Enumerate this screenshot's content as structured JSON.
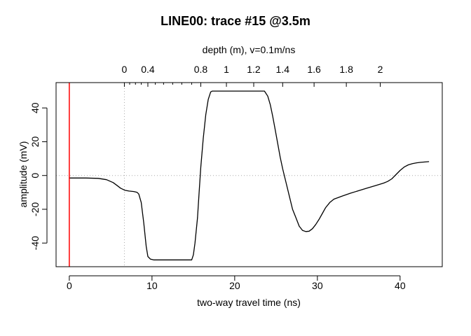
{
  "chart_data": {
    "type": "line",
    "title": "LINE00: trace #15  @3.5m",
    "xlabel": "two-way travel time (ns)",
    "ylabel": "amplitude (mV)",
    "top_axis_label": "depth (m),   v=0.1m/ns",
    "xlim": [
      -1.6,
      45.1
    ],
    "ylim": [
      -54,
      55
    ],
    "x_ticks": [
      0,
      10,
      20,
      30,
      40
    ],
    "y_ticks": [
      -40,
      -20,
      0,
      20,
      40
    ],
    "top_ticks": [
      {
        "label": "0",
        "x": 6.66
      },
      {
        "label": "0.4",
        "x": 9.5
      },
      {
        "label": "0.8",
        "x": 15.9
      },
      {
        "label": "1",
        "x": 19.0
      },
      {
        "label": "1.2",
        "x": 22.3
      },
      {
        "label": "1.4",
        "x": 25.8
      },
      {
        "label": "1.6",
        "x": 29.6
      },
      {
        "label": "1.8",
        "x": 33.5
      },
      {
        "label": "2",
        "x": 37.6
      }
    ],
    "top_minor_ticks": [
      7.3,
      8.0,
      8.7,
      10.4,
      11.4,
      12.5,
      13.6,
      14.8
    ],
    "time_zero_line": {
      "x": 0,
      "color": "#ff0000"
    },
    "zero_depth_line": {
      "x": 6.66
    },
    "grid_zero_y": true,
    "series": [
      {
        "color": "#000000",
        "x": [
          0,
          2,
          3.5,
          4.5,
          5.3,
          5.8,
          6.2,
          6.7,
          7.2,
          7.8,
          8.2,
          8.4,
          8.7,
          9.0,
          9.3,
          9.5,
          9.8,
          10.2,
          11,
          12,
          13,
          14,
          14.8,
          15.0,
          15.2,
          15.5,
          15.7,
          15.9,
          16.2,
          16.5,
          16.8,
          17.1,
          17.3,
          17.6,
          18,
          19,
          20,
          21,
          22,
          23,
          23.6,
          24,
          24.3,
          24.6,
          24.9,
          25.2,
          25.5,
          25.8,
          26.2,
          26.6,
          27.0,
          27.4,
          27.8,
          28.2,
          28.6,
          29.0,
          29.4,
          29.8,
          30.2,
          30.6,
          31,
          31.5,
          32,
          33,
          34,
          35,
          36,
          37,
          38,
          38.5,
          39,
          39.5,
          40,
          40.5,
          41,
          41.5,
          42,
          42.5,
          43,
          43.5
        ],
        "y": [
          -1.5,
          -1.5,
          -1.7,
          -2.5,
          -4.2,
          -6,
          -7.5,
          -8.7,
          -9.2,
          -9.5,
          -10,
          -11,
          -16,
          -28,
          -42,
          -48,
          -49.5,
          -50,
          -50,
          -50,
          -50,
          -50,
          -50,
          -47,
          -40,
          -25,
          -10,
          5,
          22,
          36,
          45,
          49.5,
          50,
          50,
          50,
          50,
          50,
          50,
          50,
          50,
          50,
          47,
          42,
          35,
          27,
          19,
          11,
          4,
          -4,
          -12,
          -20,
          -25,
          -30,
          -32.5,
          -33.2,
          -33,
          -31.5,
          -29,
          -26,
          -22.5,
          -19,
          -16,
          -14,
          -12.2,
          -10.5,
          -9,
          -7.5,
          -6,
          -4.5,
          -3.5,
          -2,
          0.5,
          3,
          5,
          6.3,
          7,
          7.5,
          7.8,
          8,
          8.2
        ]
      }
    ]
  }
}
